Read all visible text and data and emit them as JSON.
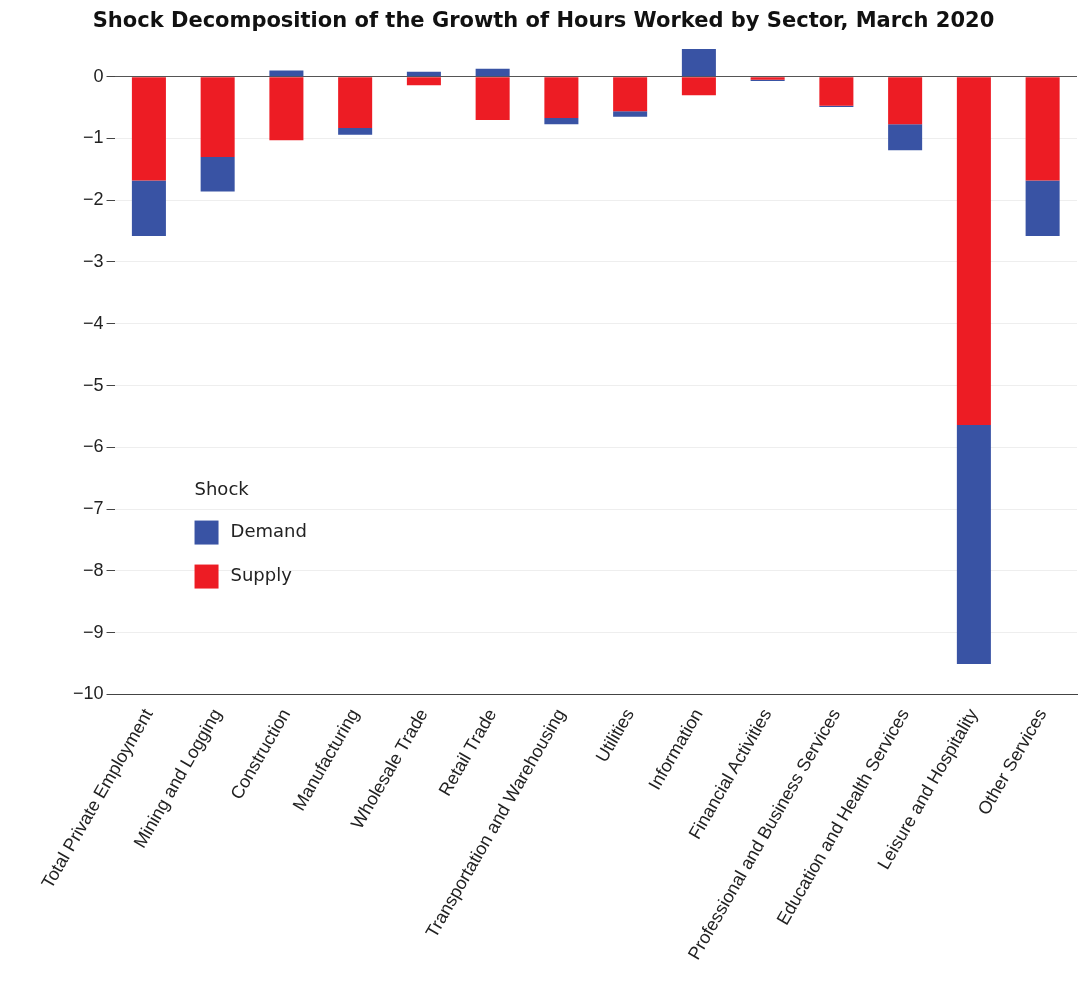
{
  "chart_data": {
    "type": "bar",
    "title": "Shock Decomposition of the Growth of Hours Worked by Sector, March 2020",
    "categories": [
      "Total Private Employment",
      "Mining and Logging",
      "Construction",
      "Manufacturing",
      "Wholesale Trade",
      "Retail Trade",
      "Transportation and Warehousing",
      "Utilities",
      "Information",
      "Financial Activities",
      "Professional and Business Services",
      "Education and Health Services",
      "Leisure and Hospitality",
      "Other Services"
    ],
    "stacked": true,
    "series": [
      {
        "name": "Supply",
        "color": "#ed1c24",
        "values": [
          -1.68,
          -1.3,
          -1.03,
          -0.83,
          -0.14,
          -0.7,
          -0.67,
          -0.56,
          -0.3,
          -0.05,
          -0.47,
          -0.77,
          -5.64,
          -1.68
        ]
      },
      {
        "name": "Demand",
        "color": "#3953a4",
        "values": [
          -0.9,
          -0.56,
          0.1,
          -0.11,
          0.08,
          0.13,
          -0.1,
          -0.09,
          0.45,
          -0.02,
          -0.02,
          -0.42,
          -3.87,
          -0.9
        ]
      }
    ],
    "legend_title": "Shock",
    "legend": "left",
    "ylim": [
      -10,
      0.5
    ],
    "yticks": [
      -10,
      -9,
      -8,
      -7,
      -6,
      -5,
      -4,
      -3,
      -2,
      -1,
      0
    ],
    "grid": "y"
  }
}
